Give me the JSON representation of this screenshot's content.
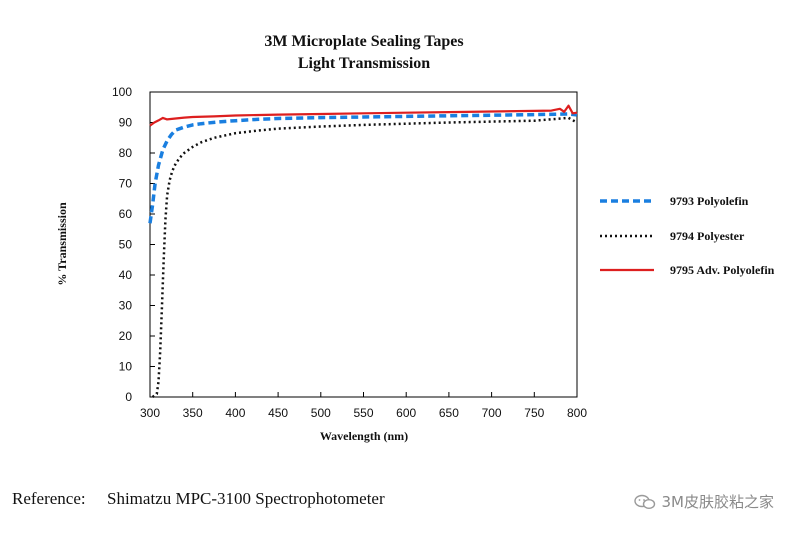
{
  "chart_data": {
    "type": "line",
    "title": "3M Microplate Sealing Tapes",
    "subtitle": "Light Transmission",
    "xlabel": "Wavelength (nm)",
    "ylabel": "% Transmission",
    "xlim": [
      300,
      800
    ],
    "ylim": [
      0,
      100
    ],
    "x_ticks": [
      300,
      350,
      400,
      450,
      500,
      550,
      600,
      650,
      700,
      750,
      800
    ],
    "y_ticks": [
      0,
      10,
      20,
      30,
      40,
      50,
      60,
      70,
      80,
      90,
      100
    ],
    "grid": false,
    "legend_position": "right",
    "series": [
      {
        "name": "9793 Polyolefin",
        "color": "#1a7fe0",
        "style": "dashed",
        "x": [
          300,
          303,
          306,
          310,
          315,
          320,
          325,
          330,
          340,
          350,
          360,
          380,
          400,
          425,
          450,
          500,
          550,
          600,
          650,
          700,
          750,
          790,
          800
        ],
        "y": [
          57,
          63,
          70,
          76,
          81,
          84,
          86,
          87.5,
          88.5,
          89.2,
          89.6,
          90.2,
          90.6,
          91,
          91.3,
          91.6,
          91.8,
          92,
          92.2,
          92.4,
          92.6,
          92.8,
          92.5
        ]
      },
      {
        "name": "9794 Polyester",
        "color": "#111111",
        "style": "dotted",
        "x": [
          303,
          308,
          310,
          312,
          314,
          316,
          318,
          320,
          323,
          326,
          330,
          335,
          340,
          350,
          360,
          375,
          400,
          425,
          450,
          500,
          550,
          600,
          650,
          700,
          750,
          790,
          800
        ],
        "y": [
          0,
          1,
          5,
          15,
          30,
          45,
          58,
          66,
          71,
          74,
          76.5,
          78.5,
          80,
          82,
          83.5,
          85,
          86.5,
          87.3,
          88,
          88.7,
          89.2,
          89.6,
          90,
          90.3,
          90.6,
          91.5,
          90
        ]
      },
      {
        "name": "9795 Adv. Polyolefin",
        "color": "#dd1f1f",
        "style": "solid",
        "x": [
          300,
          305,
          310,
          315,
          320,
          330,
          340,
          350,
          375,
          400,
          450,
          500,
          550,
          600,
          650,
          700,
          750,
          770,
          780,
          785,
          790,
          795,
          800
        ],
        "y": [
          89,
          90,
          90.7,
          91.5,
          91,
          91.3,
          91.6,
          91.8,
          92,
          92.3,
          92.6,
          92.8,
          93,
          93.2,
          93.4,
          93.6,
          93.8,
          93.9,
          94.5,
          93.5,
          95.5,
          93,
          93.2
        ]
      }
    ]
  },
  "footer": {
    "reference_label": "Reference:",
    "reference_text": "Shimatzu MPC-3100 Spectrophotometer"
  },
  "watermark": {
    "text": "3M皮肤胶粘之家",
    "icon": "wechat-icon"
  }
}
